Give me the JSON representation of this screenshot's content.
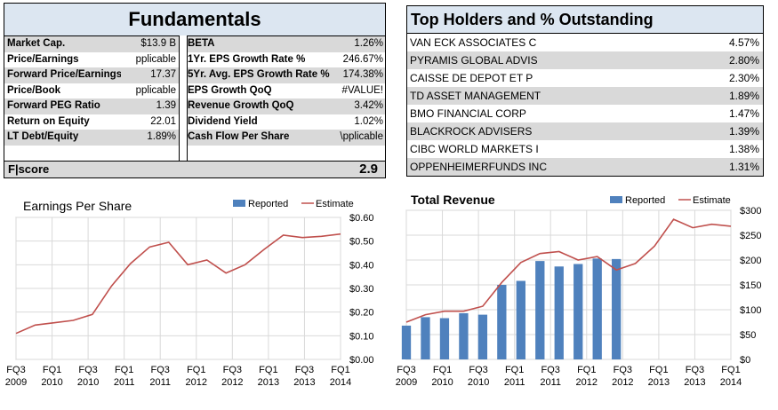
{
  "fundamentals": {
    "title": "Fundamentals",
    "left": [
      {
        "label": "Market Cap.",
        "value": "$13.9 B"
      },
      {
        "label": "Price/Earnings",
        "value": "pplicable"
      },
      {
        "label": "Forward Price/Earnings",
        "value": "17.37"
      },
      {
        "label": "Price/Book",
        "value": "pplicable"
      },
      {
        "label": "Forward PEG Ratio",
        "value": "1.39"
      },
      {
        "label": "Return on Equity",
        "value": "22.01"
      },
      {
        "label": "LT Debt/Equity",
        "value": "1.89%"
      }
    ],
    "right": [
      {
        "label": "BETA",
        "value": "1.26%"
      },
      {
        "label": "1Yr. EPS Growth Rate %",
        "value": "246.67%"
      },
      {
        "label": "5Yr. Avg. EPS Growth Rate %",
        "value": "174.38%"
      },
      {
        "label": "EPS Growth QoQ",
        "value": "#VALUE!"
      },
      {
        "label": "Revenue Growth QoQ",
        "value": "3.42%"
      },
      {
        "label": "Dividend Yield",
        "value": "1.02%"
      },
      {
        "label": "Cash Flow Per Share",
        "value": "\\pplicable"
      }
    ],
    "score_label": "F|score",
    "score_value": "2.9"
  },
  "holders": {
    "title": "Top Holders and % Outstanding",
    "rows": [
      {
        "name": "VAN ECK ASSOCIATES C",
        "pct": "4.57%"
      },
      {
        "name": "PYRAMIS GLOBAL ADVIS",
        "pct": "2.80%"
      },
      {
        "name": "CAISSE DE DEPOT ET P",
        "pct": "2.30%"
      },
      {
        "name": "TD ASSET MANAGEMENT",
        "pct": "1.89%"
      },
      {
        "name": "BMO FINANCIAL CORP",
        "pct": "1.47%"
      },
      {
        "name": "BLACKROCK ADVISERS",
        "pct": "1.39%"
      },
      {
        "name": "CIBC WORLD MARKETS I",
        "pct": "1.38%"
      },
      {
        "name": "OPPENHEIMERFUNDS INC",
        "pct": "1.31%"
      }
    ]
  },
  "colors": {
    "bar": "#4f81bd",
    "line": "#c0504d",
    "grid": "#d9d9d9",
    "header": "#dce6f1",
    "shade": "#d9d9d9"
  },
  "chart_data": [
    {
      "type": "line",
      "title": "Earnings Per Share",
      "legend": [
        "Reported",
        "Estimate"
      ],
      "legend_position": "top-right",
      "x_ticks": [
        [
          "FQ3",
          "2009"
        ],
        [
          "FQ1",
          "2010"
        ],
        [
          "FQ3",
          "2010"
        ],
        [
          "FQ1",
          "2011"
        ],
        [
          "FQ3",
          "2011"
        ],
        [
          "FQ1",
          "2012"
        ],
        [
          "FQ3",
          "2012"
        ],
        [
          "FQ1",
          "2013"
        ],
        [
          "FQ3",
          "2013"
        ],
        [
          "FQ1",
          "2014"
        ]
      ],
      "y_ticks": [
        "$0.60",
        "$0.50",
        "$0.40",
        "$0.30",
        "$0.20",
        "$0.10",
        "$0.00"
      ],
      "ylim": [
        0,
        0.6
      ],
      "grid": true,
      "reported": [],
      "estimate": [
        0.11,
        0.145,
        0.155,
        0.165,
        0.19,
        0.31,
        0.405,
        0.475,
        0.495,
        0.4,
        0.42,
        0.365,
        0.4,
        0.465,
        0.525,
        0.515,
        0.52,
        0.53
      ]
    },
    {
      "type": "bar",
      "title": "Total Revenue",
      "legend": [
        "Reported",
        "Estimate"
      ],
      "legend_position": "top-right",
      "x_ticks": [
        [
          "FQ3",
          "2009"
        ],
        [
          "FQ1",
          "2010"
        ],
        [
          "FQ3",
          "2010"
        ],
        [
          "FQ1",
          "2011"
        ],
        [
          "FQ3",
          "2011"
        ],
        [
          "FQ1",
          "2012"
        ],
        [
          "FQ3",
          "2012"
        ],
        [
          "FQ1",
          "2013"
        ],
        [
          "FQ3",
          "2013"
        ],
        [
          "FQ1",
          "2014"
        ]
      ],
      "y_ticks": [
        "$300",
        "$250",
        "$200",
        "$150",
        "$100",
        "$50",
        "$0"
      ],
      "ylim": [
        0,
        300
      ],
      "grid": true,
      "reported": [
        68,
        85,
        83,
        93,
        90,
        150,
        158,
        198,
        187,
        192,
        203,
        202
      ],
      "estimate": [
        75,
        90,
        97,
        97,
        107,
        155,
        195,
        213,
        217,
        200,
        207,
        180,
        193,
        228,
        282,
        265,
        272,
        268
      ]
    }
  ]
}
